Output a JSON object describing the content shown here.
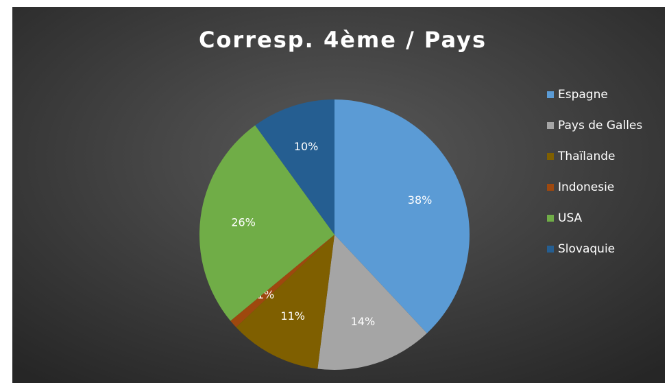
{
  "chart_data": {
    "type": "pie",
    "title": "Corresp. 4ème / Pays",
    "categories": [
      "Espagne",
      "Pays de Galles",
      "Thaïlande",
      "Indonesie",
      "USA",
      "Slovaquie"
    ],
    "values": [
      38,
      14,
      11,
      1,
      26,
      10
    ],
    "value_labels": [
      "38%",
      "14%",
      "11%",
      "1%",
      "26%",
      "10%"
    ],
    "colors": [
      "#5b9bd5",
      "#a5a5a5",
      "#7f5f00",
      "#9e480e",
      "#70ad47",
      "#255e91"
    ],
    "legend": "right"
  }
}
